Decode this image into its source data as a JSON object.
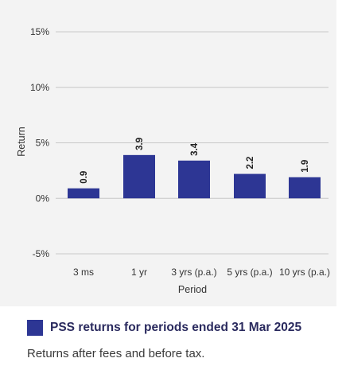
{
  "chart_data": {
    "type": "bar",
    "categories": [
      "3 ms",
      "1 yr",
      "3 yrs (p.a.)",
      "5 yrs (p.a.)",
      "10 yrs (p.a.)"
    ],
    "values": [
      0.9,
      3.9,
      3.4,
      2.2,
      1.9
    ],
    "data_labels": [
      "0.9",
      "3.9",
      "3.4",
      "2.2",
      "1.9"
    ],
    "yticks": [
      15,
      10,
      5,
      0,
      -5
    ],
    "ytick_labels": [
      "15%",
      "10%",
      "5%",
      "0%",
      "-5%"
    ],
    "ylim": [
      -5,
      15
    ],
    "xlabel": "Period",
    "ylabel": "Return",
    "grid": true,
    "legend_position": "bottom",
    "series": [
      {
        "name": "PSS returns for periods ended 31 Mar 2025",
        "values": [
          0.9,
          3.9,
          3.4,
          2.2,
          1.9
        ]
      }
    ],
    "colors": {
      "bar": "#2d3694",
      "grid": "#c8c8c8",
      "panel": "#f3f3f3"
    }
  },
  "legend": {
    "label": "PSS returns for periods ended 31 Mar 2025"
  },
  "footnote": "Returns after fees and before tax."
}
